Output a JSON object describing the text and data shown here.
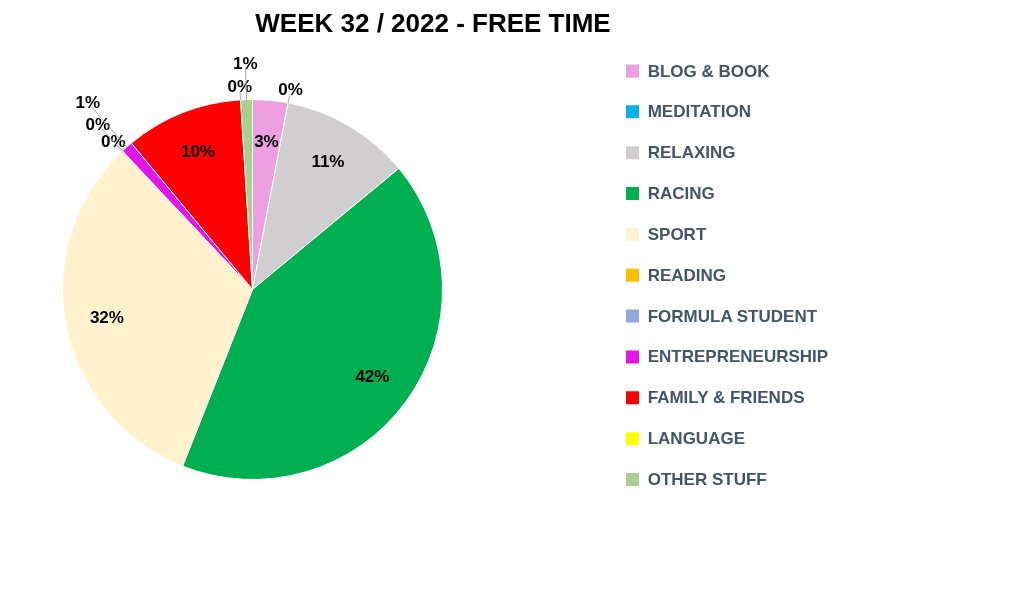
{
  "chart_data": {
    "type": "pie",
    "title": "WEEK 32 / 2022 - FREE TIME",
    "categories": [
      "BLOG & BOOK",
      "MEDITATION",
      "RELAXING",
      "RACING",
      "SPORT",
      "READING",
      "FORMULA STUDENT",
      "ENTREPRENEURSHIP",
      "FAMILY & FRIENDS",
      "LANGUAGE",
      "OTHER STUFF"
    ],
    "values": [
      3,
      0,
      11,
      42,
      32,
      0,
      0,
      1,
      10,
      0,
      1
    ],
    "colors": [
      "#ee9fe1",
      "#00b0f0",
      "#d0cece",
      "#00b050",
      "#fff2cc",
      "#ffc000",
      "#8eaadb",
      "#e413e9",
      "#ff0000",
      "#ffff00",
      "#a9d18e"
    ],
    "value_labels": [
      "3%",
      "0%",
      "11%",
      "42%",
      "32%",
      "0%",
      "0%",
      "1%",
      "10%",
      "0%",
      "1%"
    ],
    "legend": "right"
  }
}
